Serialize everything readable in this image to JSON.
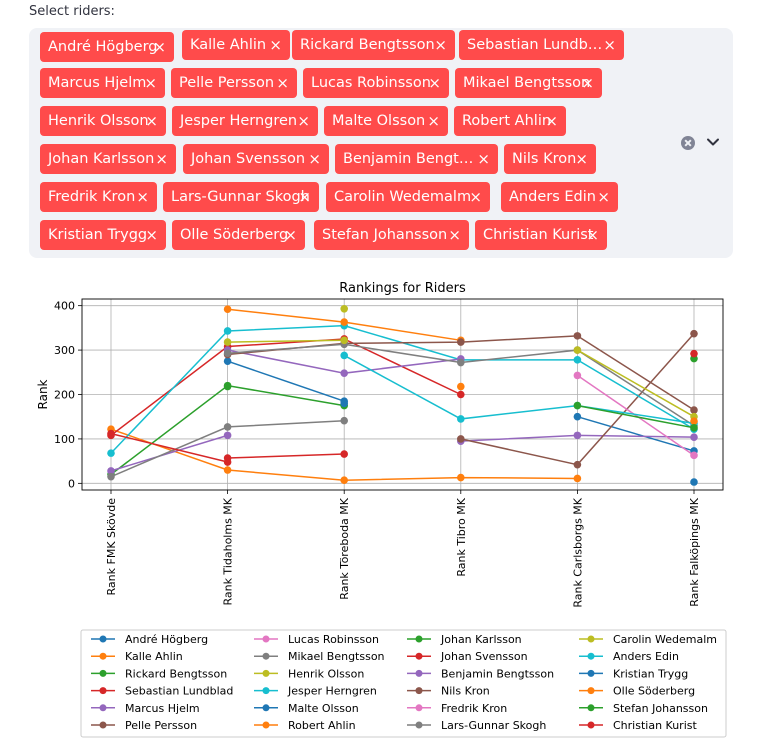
{
  "widget": {
    "label": "Select riders:",
    "selected": [
      "André Högberg",
      "Kalle Ahlin",
      "Rickard Bengtsson",
      "Sebastian Lundb…",
      "Marcus Hjelm",
      "Pelle Persson",
      "Lucas Robinsson",
      "Mikael Bengtsson",
      "Henrik Olsson",
      "Jesper Herngren",
      "Malte Olsson",
      "Robert Ahlin",
      "Johan Karlsson",
      "Johan Svensson",
      "Benjamin Bengt…",
      "Nils Kron",
      "Fredrik Kron",
      "Lars-Gunnar Skogh",
      "Carolin Wedemalm",
      "Anders Edin",
      "Kristian Trygg",
      "Olle Söderberg",
      "Stefan Johansson",
      "Christian Kurist"
    ],
    "remove_glyph": "×",
    "clear_icon": "clear-circle-icon",
    "expand_icon": "chevron-down-icon",
    "chip_color": "#ff4b4b"
  },
  "chart_data": {
    "type": "line",
    "title": "Rankings for Riders",
    "ylabel": "Rank",
    "xlabel": "",
    "categories": [
      "Rank FMK Skövde",
      "Rank Tidaholms MK",
      "Rank Töreboda MK",
      "Rank Tibro MK",
      "Rank Carlsborgs MK",
      "Rank Falköpings MK"
    ],
    "yticks": [
      0,
      100,
      200,
      300,
      400
    ],
    "ylim": [
      -15,
      415
    ],
    "grid": true,
    "legend": "below",
    "series": [
      {
        "name": "André Högberg",
        "color": "#1f77b4",
        "values": [
          null,
          275,
          185,
          null,
          150,
          73
        ]
      },
      {
        "name": "Kalle Ahlin",
        "color": "#ff7f0e",
        "values": [
          122,
          30,
          7,
          13,
          11,
          null
        ]
      },
      {
        "name": "Rickard Bengtsson",
        "color": "#2ca02c",
        "values": [
          20,
          220,
          175,
          null,
          null,
          null
        ]
      },
      {
        "name": "Sebastian Lundblad",
        "color": "#d62728",
        "values": [
          108,
          308,
          325,
          200,
          null,
          null
        ]
      },
      {
        "name": "Marcus Hjelm",
        "color": "#9467bd",
        "values": [
          28,
          108,
          null,
          95,
          108,
          104
        ]
      },
      {
        "name": "Pelle Persson",
        "color": "#8c564b",
        "values": [
          null,
          null,
          null,
          100,
          42,
          337
        ]
      },
      {
        "name": "Lucas Robinsson",
        "color": "#e377c2",
        "values": [
          null,
          null,
          null,
          null,
          243,
          63
        ]
      },
      {
        "name": "Mikael Bengtsson",
        "color": "#7f7f7f",
        "values": [
          15,
          127,
          141,
          null,
          null,
          null
        ]
      },
      {
        "name": "Henrik Olsson",
        "color": "#bcbd22",
        "values": [
          null,
          null,
          393,
          null,
          null,
          null
        ]
      },
      {
        "name": "Jesper Herngren",
        "color": "#17becf",
        "values": [
          68,
          343,
          355,
          278,
          278,
          122
        ]
      },
      {
        "name": "Malte Olsson",
        "color": "#1f77b4",
        "values": [
          null,
          null,
          null,
          null,
          null,
          3
        ]
      },
      {
        "name": "Robert Ahlin",
        "color": "#ff7f0e",
        "values": [
          null,
          392,
          363,
          322,
          null,
          null
        ]
      },
      {
        "name": "Johan Karlsson",
        "color": "#2ca02c",
        "values": [
          null,
          null,
          null,
          null,
          null,
          281
        ]
      },
      {
        "name": "Johan Svensson",
        "color": "#d62728",
        "values": [
          null,
          57,
          66,
          null,
          null,
          null
        ]
      },
      {
        "name": "Benjamin Bengtsson",
        "color": "#9467bd",
        "values": [
          null,
          300,
          248,
          280,
          null,
          null
        ]
      },
      {
        "name": "Nils Kron",
        "color": "#8c564b",
        "values": [
          null,
          290,
          315,
          318,
          332,
          165
        ]
      },
      {
        "name": "Fredrik Kron",
        "color": "#e377c2",
        "values": [
          null,
          null,
          null,
          null,
          null,
          null
        ]
      },
      {
        "name": "Lars-Gunnar Skogh",
        "color": "#7f7f7f",
        "values": [
          null,
          293,
          313,
          272,
          300,
          130
        ]
      },
      {
        "name": "Carolin Wedemalm",
        "color": "#bcbd22",
        "values": [
          null,
          318,
          322,
          null,
          300,
          150
        ]
      },
      {
        "name": "Anders Edin",
        "color": "#17becf",
        "values": [
          null,
          null,
          288,
          145,
          175,
          135
        ]
      },
      {
        "name": "Kristian Trygg",
        "color": "#1f77b4",
        "values": [
          null,
          null,
          180,
          null,
          null,
          null
        ]
      },
      {
        "name": "Olle Söderberg",
        "color": "#ff7f0e",
        "values": [
          null,
          null,
          null,
          218,
          null,
          140
        ]
      },
      {
        "name": "Stefan Johansson",
        "color": "#2ca02c",
        "values": [
          null,
          218,
          null,
          null,
          175,
          125
        ]
      },
      {
        "name": "Christian Kurist",
        "color": "#d62728",
        "values": [
          112,
          48,
          null,
          null,
          null,
          292
        ]
      }
    ]
  }
}
